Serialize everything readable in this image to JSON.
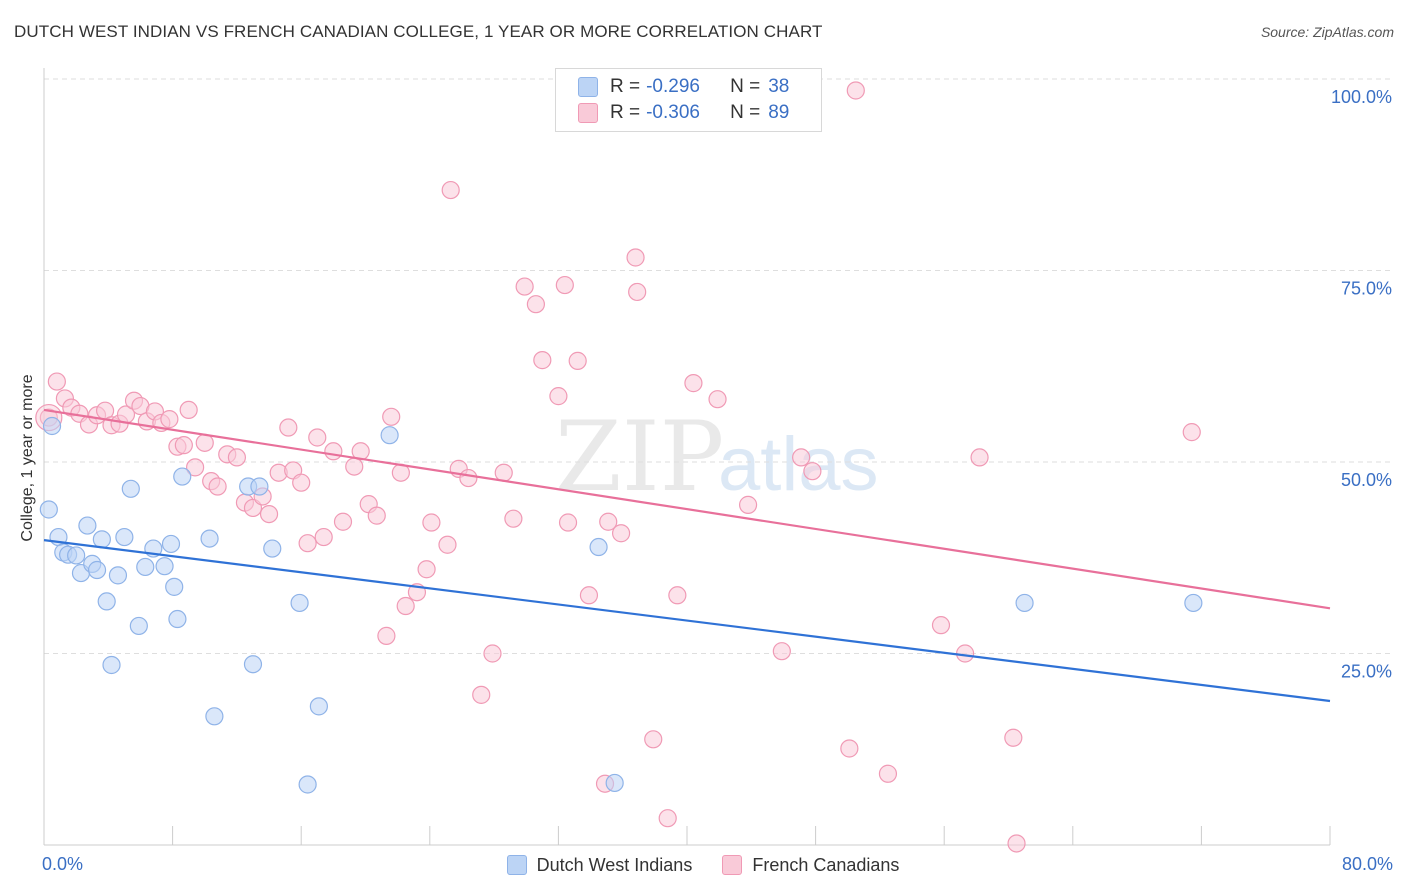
{
  "title": "DUTCH WEST INDIAN VS FRENCH CANADIAN COLLEGE, 1 YEAR OR MORE CORRELATION CHART",
  "source": "Source: ZipAtlas.com",
  "watermark": {
    "zip": "ZIP",
    "atlas": "atlas"
  },
  "colors": {
    "blue_fill": "#bcd4f5",
    "blue_stroke": "#8fb3e8",
    "blue_line": "#2f72d6",
    "pink_fill": "#f9cad8",
    "pink_stroke": "#f09ab5",
    "pink_line": "#e8709a",
    "tick_label": "#3a6fc4"
  },
  "legend": {
    "r_label": "R =",
    "n_label": "N =",
    "items": [
      {
        "r": "-0.296",
        "n": "38"
      },
      {
        "r": "-0.306",
        "n": "89"
      }
    ]
  },
  "chart_data": {
    "type": "scatter",
    "title": "DUTCH WEST INDIAN VS FRENCH CANADIAN COLLEGE, 1 YEAR OR MORE CORRELATION CHART",
    "xlabel": "",
    "ylabel": "College, 1 year or more",
    "xlim": [
      0,
      80
    ],
    "ylim": [
      0,
      100
    ],
    "x_tick_labels": [
      "0.0%",
      "80.0%"
    ],
    "y_tick_values": [
      25,
      50,
      75,
      100
    ],
    "y_tick_labels": [
      "25.0%",
      "50.0%",
      "75.0%",
      "100.0%"
    ],
    "grid": true,
    "legend_position": "bottom-center",
    "series": [
      {
        "name": "Dutch West Indians",
        "r": -0.296,
        "n": 38,
        "trend": {
          "x": [
            0,
            80
          ],
          "y": [
            39.8,
            18.8
          ]
        },
        "points": [
          {
            "x": 0.3,
            "y": 43.8
          },
          {
            "x": 0.5,
            "y": 54.7
          },
          {
            "x": 0.9,
            "y": 40.2
          },
          {
            "x": 1.2,
            "y": 38.2
          },
          {
            "x": 1.5,
            "y": 37.9
          },
          {
            "x": 2.0,
            "y": 37.8
          },
          {
            "x": 2.3,
            "y": 35.5
          },
          {
            "x": 2.7,
            "y": 41.7
          },
          {
            "x": 3.0,
            "y": 36.7
          },
          {
            "x": 3.3,
            "y": 35.9
          },
          {
            "x": 3.6,
            "y": 39.9
          },
          {
            "x": 3.9,
            "y": 31.8
          },
          {
            "x": 4.2,
            "y": 23.5
          },
          {
            "x": 4.6,
            "y": 35.2
          },
          {
            "x": 5.0,
            "y": 40.2
          },
          {
            "x": 5.4,
            "y": 46.5
          },
          {
            "x": 5.9,
            "y": 28.6
          },
          {
            "x": 6.3,
            "y": 36.3
          },
          {
            "x": 6.8,
            "y": 38.7
          },
          {
            "x": 7.5,
            "y": 36.4
          },
          {
            "x": 7.9,
            "y": 39.3
          },
          {
            "x": 8.1,
            "y": 33.7
          },
          {
            "x": 8.3,
            "y": 29.5
          },
          {
            "x": 8.6,
            "y": 48.1
          },
          {
            "x": 10.3,
            "y": 40.0
          },
          {
            "x": 10.6,
            "y": 16.8
          },
          {
            "x": 12.7,
            "y": 46.8
          },
          {
            "x": 13.0,
            "y": 23.6
          },
          {
            "x": 13.4,
            "y": 46.8
          },
          {
            "x": 14.2,
            "y": 38.7
          },
          {
            "x": 15.9,
            "y": 31.6
          },
          {
            "x": 16.4,
            "y": 7.9
          },
          {
            "x": 17.1,
            "y": 18.1
          },
          {
            "x": 21.5,
            "y": 53.5
          },
          {
            "x": 34.5,
            "y": 38.9
          },
          {
            "x": 35.5,
            "y": 8.1
          },
          {
            "x": 61.0,
            "y": 31.6
          },
          {
            "x": 71.5,
            "y": 31.6
          }
        ]
      },
      {
        "name": "French Canadians",
        "r": -0.306,
        "n": 89,
        "trend": {
          "x": [
            0,
            80
          ],
          "y": [
            56.8,
            30.9
          ]
        },
        "points": [
          {
            "x": 0.3,
            "y": 55.8
          },
          {
            "x": 0.8,
            "y": 60.5
          },
          {
            "x": 1.3,
            "y": 58.3
          },
          {
            "x": 1.7,
            "y": 57.1
          },
          {
            "x": 2.2,
            "y": 56.3
          },
          {
            "x": 2.8,
            "y": 54.9
          },
          {
            "x": 3.3,
            "y": 56.1
          },
          {
            "x": 3.8,
            "y": 56.7
          },
          {
            "x": 4.2,
            "y": 54.8
          },
          {
            "x": 4.7,
            "y": 55.0
          },
          {
            "x": 5.1,
            "y": 56.2
          },
          {
            "x": 5.6,
            "y": 58.0
          },
          {
            "x": 6.0,
            "y": 57.3
          },
          {
            "x": 6.4,
            "y": 55.3
          },
          {
            "x": 6.9,
            "y": 56.6
          },
          {
            "x": 7.3,
            "y": 55.1
          },
          {
            "x": 7.8,
            "y": 55.6
          },
          {
            "x": 8.3,
            "y": 52.0
          },
          {
            "x": 8.7,
            "y": 52.2
          },
          {
            "x": 9.0,
            "y": 56.8
          },
          {
            "x": 9.4,
            "y": 49.3
          },
          {
            "x": 10.0,
            "y": 52.5
          },
          {
            "x": 10.4,
            "y": 47.5
          },
          {
            "x": 10.8,
            "y": 46.8
          },
          {
            "x": 11.4,
            "y": 51.0
          },
          {
            "x": 12.0,
            "y": 50.6
          },
          {
            "x": 12.5,
            "y": 44.7
          },
          {
            "x": 13.0,
            "y": 44.0
          },
          {
            "x": 13.6,
            "y": 45.5
          },
          {
            "x": 14.0,
            "y": 43.2
          },
          {
            "x": 14.6,
            "y": 48.6
          },
          {
            "x": 15.2,
            "y": 54.5
          },
          {
            "x": 15.5,
            "y": 48.9
          },
          {
            "x": 16.0,
            "y": 47.3
          },
          {
            "x": 16.4,
            "y": 39.4
          },
          {
            "x": 17.0,
            "y": 53.2
          },
          {
            "x": 17.4,
            "y": 40.2
          },
          {
            "x": 18.0,
            "y": 51.4
          },
          {
            "x": 18.6,
            "y": 42.2
          },
          {
            "x": 19.3,
            "y": 49.4
          },
          {
            "x": 19.7,
            "y": 51.4
          },
          {
            "x": 20.2,
            "y": 44.5
          },
          {
            "x": 20.7,
            "y": 43.0
          },
          {
            "x": 21.3,
            "y": 27.3
          },
          {
            "x": 21.6,
            "y": 55.9
          },
          {
            "x": 22.2,
            "y": 48.6
          },
          {
            "x": 22.5,
            "y": 31.2
          },
          {
            "x": 23.2,
            "y": 33.0
          },
          {
            "x": 23.8,
            "y": 36.0
          },
          {
            "x": 24.1,
            "y": 42.1
          },
          {
            "x": 25.1,
            "y": 39.2
          },
          {
            "x": 25.3,
            "y": 85.5
          },
          {
            "x": 25.8,
            "y": 49.1
          },
          {
            "x": 26.4,
            "y": 47.9
          },
          {
            "x": 27.2,
            "y": 19.6
          },
          {
            "x": 27.9,
            "y": 25.0
          },
          {
            "x": 28.6,
            "y": 48.6
          },
          {
            "x": 29.2,
            "y": 42.6
          },
          {
            "x": 29.9,
            "y": 72.9
          },
          {
            "x": 30.6,
            "y": 70.6
          },
          {
            "x": 31.0,
            "y": 63.3
          },
          {
            "x": 32.0,
            "y": 58.6
          },
          {
            "x": 32.4,
            "y": 73.1
          },
          {
            "x": 32.6,
            "y": 42.1
          },
          {
            "x": 33.2,
            "y": 63.2
          },
          {
            "x": 33.9,
            "y": 32.6
          },
          {
            "x": 34.9,
            "y": 8.0
          },
          {
            "x": 35.1,
            "y": 42.2
          },
          {
            "x": 35.9,
            "y": 40.7
          },
          {
            "x": 36.8,
            "y": 76.7
          },
          {
            "x": 36.9,
            "y": 72.2
          },
          {
            "x": 37.9,
            "y": 13.8
          },
          {
            "x": 38.8,
            "y": 3.5
          },
          {
            "x": 39.4,
            "y": 32.6
          },
          {
            "x": 40.4,
            "y": 60.3
          },
          {
            "x": 41.9,
            "y": 58.2
          },
          {
            "x": 43.8,
            "y": 44.4
          },
          {
            "x": 45.9,
            "y": 25.3
          },
          {
            "x": 47.1,
            "y": 50.6
          },
          {
            "x": 47.8,
            "y": 48.8
          },
          {
            "x": 50.1,
            "y": 12.6
          },
          {
            "x": 50.5,
            "y": 98.5
          },
          {
            "x": 52.5,
            "y": 9.3
          },
          {
            "x": 55.8,
            "y": 28.7
          },
          {
            "x": 57.3,
            "y": 25.0
          },
          {
            "x": 58.2,
            "y": 50.6
          },
          {
            "x": 60.3,
            "y": 14.0
          },
          {
            "x": 60.5,
            "y": 0.2
          },
          {
            "x": 71.4,
            "y": 53.9
          }
        ]
      }
    ]
  }
}
